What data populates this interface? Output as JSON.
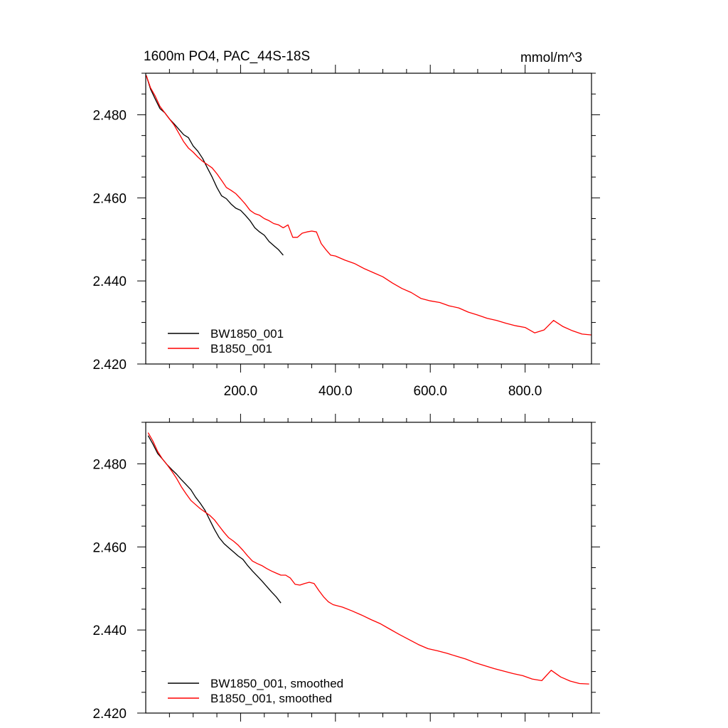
{
  "chart_data": [
    {
      "type": "line",
      "title": "1600m PO4, PAC_44S-18S",
      "units": "mmol/m^3",
      "xlim": [
        0,
        940
      ],
      "ylim": [
        2.42,
        2.49
      ],
      "xticks": [
        200,
        400,
        600,
        800
      ],
      "xtick_labels": [
        "200.0",
        "400.0",
        "600.0",
        "800.0"
      ],
      "yticks": [
        2.42,
        2.44,
        2.46,
        2.48
      ],
      "ytick_labels": [
        "2.420",
        "2.440",
        "2.460",
        "2.480"
      ],
      "legend_position": "bottom-left",
      "series": [
        {
          "name": "BW1850_001",
          "color": "#000000",
          "x": [
            1,
            10,
            20,
            30,
            40,
            50,
            60,
            70,
            80,
            90,
            100,
            110,
            120,
            130,
            140,
            150,
            160,
            170,
            180,
            190,
            200,
            210,
            220,
            230,
            240,
            250,
            260,
            270,
            280,
            290
          ],
          "y": [
            2.4895,
            2.4862,
            2.4838,
            2.4815,
            2.4805,
            2.479,
            2.4778,
            2.4765,
            2.4752,
            2.4745,
            2.4725,
            2.4712,
            2.4695,
            2.4672,
            2.465,
            2.4625,
            2.4605,
            2.4598,
            2.4585,
            2.4575,
            2.457,
            2.4558,
            2.4545,
            2.4528,
            2.4518,
            2.451,
            2.4495,
            2.4485,
            2.4475,
            2.4462
          ]
        },
        {
          "name": "B1850_001",
          "color": "#ff0000",
          "x": [
            1,
            10,
            20,
            30,
            40,
            50,
            60,
            70,
            80,
            90,
            100,
            110,
            120,
            130,
            140,
            150,
            160,
            170,
            180,
            190,
            200,
            210,
            220,
            230,
            240,
            250,
            260,
            270,
            280,
            290,
            300,
            310,
            320,
            330,
            340,
            350,
            360,
            370,
            380,
            390,
            400,
            420,
            440,
            460,
            480,
            500,
            520,
            540,
            560,
            580,
            600,
            620,
            640,
            660,
            680,
            700,
            720,
            740,
            760,
            780,
            800,
            820,
            840,
            860,
            880,
            900,
            920,
            940
          ],
          "y": [
            2.4895,
            2.4865,
            2.4845,
            2.482,
            2.4805,
            2.479,
            2.4775,
            2.4755,
            2.4735,
            2.472,
            2.471,
            2.4698,
            2.4688,
            2.468,
            2.4672,
            2.4658,
            2.4642,
            2.4625,
            2.4618,
            2.461,
            2.4598,
            2.4585,
            2.457,
            2.4562,
            2.4558,
            2.455,
            2.4545,
            2.4538,
            2.4535,
            2.4528,
            2.4535,
            2.4505,
            2.4505,
            2.4515,
            2.4518,
            2.452,
            2.4518,
            2.449,
            2.4475,
            2.4462,
            2.446,
            2.445,
            2.4442,
            2.443,
            2.442,
            2.441,
            2.4395,
            2.4382,
            2.4372,
            2.4358,
            2.4352,
            2.4348,
            2.434,
            2.4335,
            2.4325,
            2.4318,
            2.431,
            2.4305,
            2.4298,
            2.4292,
            2.4288,
            2.4275,
            2.4282,
            2.4305,
            2.429,
            2.428,
            2.4272,
            2.427
          ]
        }
      ]
    },
    {
      "type": "line",
      "title": "",
      "units": "",
      "xlim": [
        0,
        940
      ],
      "ylim": [
        2.42,
        2.49
      ],
      "xticks": [
        200,
        400,
        600,
        800
      ],
      "xtick_labels": [],
      "yticks": [
        2.42,
        2.44,
        2.46,
        2.48
      ],
      "ytick_labels": [
        "2.420",
        "2.440",
        "2.460",
        "2.480"
      ],
      "legend_position": "bottom-left",
      "series": [
        {
          "name": "BW1850_001, smoothed",
          "color": "#000000",
          "x": [
            5,
            15,
            25,
            35,
            45,
            55,
            65,
            75,
            85,
            95,
            105,
            115,
            125,
            135,
            145,
            155,
            165,
            175,
            185,
            195,
            205,
            215,
            225,
            235,
            245,
            255,
            265,
            275,
            285
          ],
          "y": [
            2.4868,
            2.4848,
            2.4825,
            2.4812,
            2.4798,
            2.4786,
            2.4775,
            2.4762,
            2.475,
            2.4738,
            2.472,
            2.4705,
            2.4688,
            2.4665,
            2.4642,
            2.4622,
            2.4608,
            2.4598,
            2.4588,
            2.4578,
            2.457,
            2.4555,
            2.4542,
            2.453,
            2.4518,
            2.4505,
            2.4492,
            2.448,
            2.4465
          ]
        },
        {
          "name": "B1850_001, smoothed",
          "color": "#ff0000",
          "x": [
            5,
            15,
            25,
            35,
            45,
            55,
            65,
            75,
            85,
            95,
            105,
            115,
            125,
            135,
            145,
            155,
            165,
            175,
            185,
            195,
            205,
            215,
            225,
            235,
            245,
            255,
            265,
            275,
            285,
            295,
            305,
            315,
            325,
            335,
            345,
            355,
            365,
            375,
            385,
            395,
            415,
            435,
            455,
            475,
            495,
            515,
            535,
            555,
            575,
            595,
            615,
            635,
            655,
            675,
            695,
            715,
            735,
            755,
            775,
            795,
            815,
            835,
            855,
            875,
            895,
            915,
            935
          ],
          "y": [
            2.4875,
            2.4855,
            2.483,
            2.4812,
            2.4798,
            2.4782,
            2.4765,
            2.4745,
            2.4728,
            2.4712,
            2.4702,
            2.4692,
            2.4684,
            2.4676,
            2.4665,
            2.465,
            2.4635,
            2.4622,
            2.4614,
            2.4604,
            2.4592,
            2.4578,
            2.4566,
            2.456,
            2.4555,
            2.4548,
            2.4542,
            2.4537,
            2.4532,
            2.4532,
            2.4525,
            2.451,
            2.4508,
            2.4512,
            2.4515,
            2.4512,
            2.4495,
            2.448,
            2.4468,
            2.4461,
            2.4455,
            2.4446,
            2.4436,
            2.4425,
            2.4415,
            2.4402,
            2.4389,
            2.4377,
            2.4365,
            2.4355,
            2.435,
            2.4344,
            2.4337,
            2.433,
            2.4321,
            2.4314,
            2.4307,
            2.4301,
            2.4295,
            2.429,
            2.4282,
            2.4278,
            2.4303,
            2.4287,
            2.4277,
            2.4271,
            2.427
          ]
        }
      ]
    }
  ]
}
